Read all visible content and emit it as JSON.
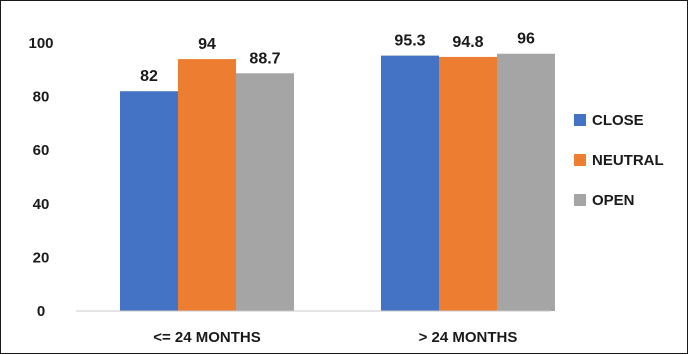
{
  "chart_data": {
    "type": "bar",
    "categories": [
      "<= 24 MONTHS",
      "> 24 MONTHS"
    ],
    "series": [
      {
        "name": "CLOSE",
        "values": [
          82,
          95.3
        ],
        "labels": [
          "82",
          "95.3"
        ],
        "color": "#4472C4"
      },
      {
        "name": "NEUTRAL",
        "values": [
          94,
          94.8
        ],
        "labels": [
          "94",
          "94.8"
        ],
        "color": "#ED7D31"
      },
      {
        "name": "OPEN",
        "values": [
          88.7,
          96
        ],
        "labels": [
          "88.7",
          "96"
        ],
        "color": "#A5A5A5"
      }
    ],
    "ylim": [
      0,
      100
    ],
    "yticks": [
      0,
      20,
      40,
      60,
      80,
      100
    ],
    "grid": false,
    "legend_position": "right"
  }
}
